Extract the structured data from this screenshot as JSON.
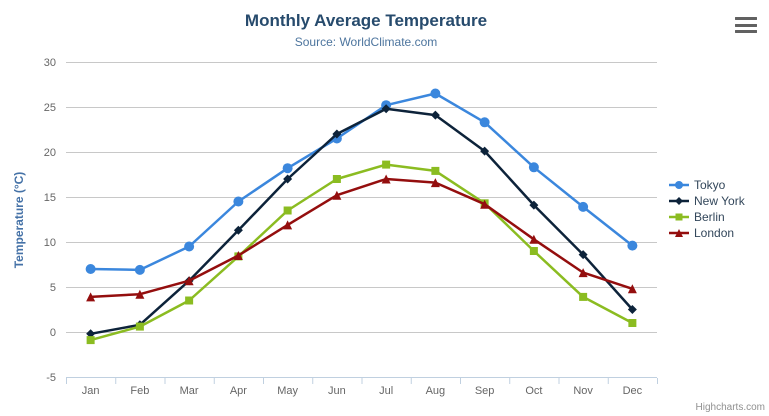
{
  "header": {
    "title": "Monthly Average Temperature",
    "subtitle": "Source: WorldClimate.com"
  },
  "credits": "Highcharts.com",
  "icons": {
    "menu": "hamburger-menu"
  },
  "style_colors": {
    "title": "#274b6d",
    "subtitle": "#4d759e",
    "axis_title": "#4572a7",
    "axis_labels": "#666666",
    "gridline": "#c8c8c8",
    "axis_line": "#c0d0e0",
    "legend_text": "#33475b",
    "credits_text": "#909090"
  },
  "chart_data": {
    "type": "line",
    "title": "Monthly Average Temperature",
    "subtitle": "Source: WorldClimate.com",
    "xlabel": "",
    "ylabel": "Temperature (°C)",
    "categories": [
      "Jan",
      "Feb",
      "Mar",
      "Apr",
      "May",
      "Jun",
      "Jul",
      "Aug",
      "Sep",
      "Oct",
      "Nov",
      "Dec"
    ],
    "ylim": [
      -5,
      30
    ],
    "yticks": [
      -5,
      0,
      5,
      10,
      15,
      20,
      25,
      30
    ],
    "grid": true,
    "legend_position": "right",
    "series": [
      {
        "name": "Tokyo",
        "color": "#3b87dd",
        "marker": "circle",
        "values": [
          7.0,
          6.9,
          9.5,
          14.5,
          18.2,
          21.5,
          25.2,
          26.5,
          23.3,
          18.3,
          13.9,
          9.6
        ]
      },
      {
        "name": "New York",
        "color": "#0d233a",
        "marker": "diamond",
        "values": [
          -0.2,
          0.8,
          5.7,
          11.3,
          17.0,
          22.0,
          24.8,
          24.1,
          20.1,
          14.1,
          8.6,
          2.5
        ]
      },
      {
        "name": "Berlin",
        "color": "#8bbc21",
        "marker": "square",
        "values": [
          -0.9,
          0.6,
          3.5,
          8.4,
          13.5,
          17.0,
          18.6,
          17.9,
          14.3,
          9.0,
          3.9,
          1.0
        ]
      },
      {
        "name": "London",
        "color": "#940e0e",
        "marker": "triangle",
        "values": [
          3.9,
          4.2,
          5.7,
          8.5,
          11.9,
          15.2,
          17.0,
          16.6,
          14.2,
          10.3,
          6.6,
          4.8
        ]
      }
    ]
  }
}
